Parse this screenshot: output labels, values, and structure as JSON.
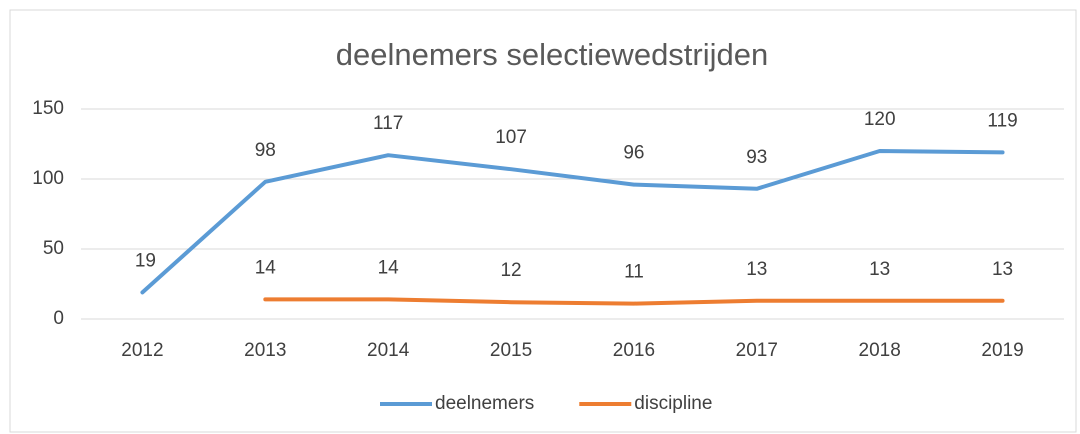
{
  "chart_data": {
    "type": "line",
    "title": "deelnemers selectiewedstrijden",
    "categories": [
      "2012",
      "2013",
      "2014",
      "2015",
      "2016",
      "2017",
      "2018",
      "2019"
    ],
    "series": [
      {
        "name": "deelnemers",
        "color": "#5b9bd5",
        "values": [
          19,
          98,
          117,
          107,
          96,
          93,
          120,
          119
        ]
      },
      {
        "name": "discipline",
        "color": "#ed7d31",
        "values": [
          null,
          14,
          14,
          12,
          11,
          13,
          13,
          13
        ]
      }
    ],
    "ylim": [
      0,
      150
    ],
    "yticks": [
      0,
      50,
      100,
      150
    ],
    "grid": true,
    "legend": "bottom"
  }
}
